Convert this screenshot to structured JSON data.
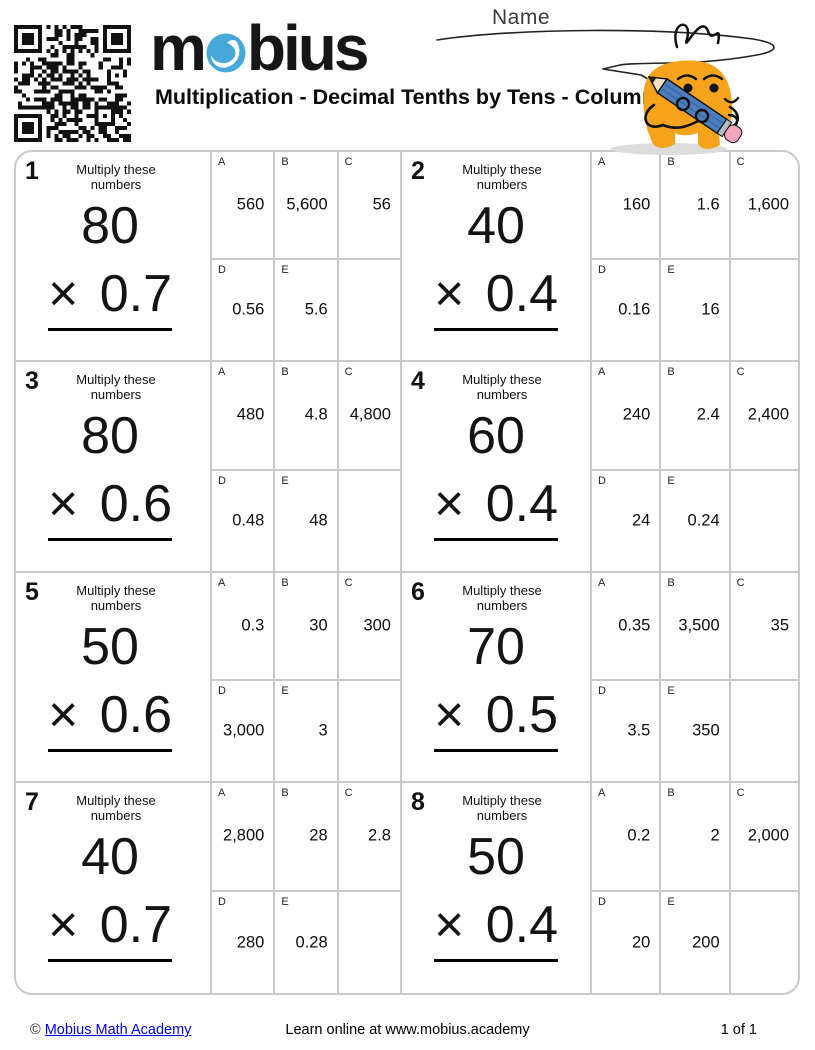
{
  "header": {
    "logo_prefix": "m",
    "logo_suffix": "bius",
    "title": "Multiplication - Decimal Tenths by Tens - Column",
    "name_label": "Name"
  },
  "instruction_label": "Multiply these numbers",
  "problems": [
    {
      "number": "1",
      "multiplicand": "80",
      "operator": "×",
      "multiplier": "0.7",
      "answers": [
        {
          "label": "A",
          "value": "560"
        },
        {
          "label": "B",
          "value": "5,600"
        },
        {
          "label": "C",
          "value": "56"
        },
        {
          "label": "D",
          "value": "0.56"
        },
        {
          "label": "E",
          "value": "5.6"
        }
      ]
    },
    {
      "number": "2",
      "multiplicand": "40",
      "operator": "×",
      "multiplier": "0.4",
      "answers": [
        {
          "label": "A",
          "value": "160"
        },
        {
          "label": "B",
          "value": "1.6"
        },
        {
          "label": "C",
          "value": "1,600"
        },
        {
          "label": "D",
          "value": "0.16"
        },
        {
          "label": "E",
          "value": "16"
        }
      ]
    },
    {
      "number": "3",
      "multiplicand": "80",
      "operator": "×",
      "multiplier": "0.6",
      "answers": [
        {
          "label": "A",
          "value": "480"
        },
        {
          "label": "B",
          "value": "4.8"
        },
        {
          "label": "C",
          "value": "4,800"
        },
        {
          "label": "D",
          "value": "0.48"
        },
        {
          "label": "E",
          "value": "48"
        }
      ]
    },
    {
      "number": "4",
      "multiplicand": "60",
      "operator": "×",
      "multiplier": "0.4",
      "answers": [
        {
          "label": "A",
          "value": "240"
        },
        {
          "label": "B",
          "value": "2.4"
        },
        {
          "label": "C",
          "value": "2,400"
        },
        {
          "label": "D",
          "value": "24"
        },
        {
          "label": "E",
          "value": "0.24"
        }
      ]
    },
    {
      "number": "5",
      "multiplicand": "50",
      "operator": "×",
      "multiplier": "0.6",
      "answers": [
        {
          "label": "A",
          "value": "0.3"
        },
        {
          "label": "B",
          "value": "30"
        },
        {
          "label": "C",
          "value": "300"
        },
        {
          "label": "D",
          "value": "3,000"
        },
        {
          "label": "E",
          "value": "3"
        }
      ]
    },
    {
      "number": "6",
      "multiplicand": "70",
      "operator": "×",
      "multiplier": "0.5",
      "answers": [
        {
          "label": "A",
          "value": "0.35"
        },
        {
          "label": "B",
          "value": "3,500"
        },
        {
          "label": "C",
          "value": "35"
        },
        {
          "label": "D",
          "value": "3.5"
        },
        {
          "label": "E",
          "value": "350"
        }
      ]
    },
    {
      "number": "7",
      "multiplicand": "40",
      "operator": "×",
      "multiplier": "0.7",
      "answers": [
        {
          "label": "A",
          "value": "2,800"
        },
        {
          "label": "B",
          "value": "28"
        },
        {
          "label": "C",
          "value": "2.8"
        },
        {
          "label": "D",
          "value": "280"
        },
        {
          "label": "E",
          "value": "0.28"
        }
      ]
    },
    {
      "number": "8",
      "multiplicand": "50",
      "operator": "×",
      "multiplier": "0.4",
      "answers": [
        {
          "label": "A",
          "value": "0.2"
        },
        {
          "label": "B",
          "value": "2"
        },
        {
          "label": "C",
          "value": "2,000"
        },
        {
          "label": "D",
          "value": "20"
        },
        {
          "label": "E",
          "value": "200"
        }
      ]
    }
  ],
  "footer": {
    "copyright": "©",
    "link_label": "Mobius Math Academy",
    "tagline": "Learn online at www.mobius.academy",
    "page_indicator": "1 of 1"
  },
  "colors": {
    "logo_blue": "#47a8dc",
    "mascot_orange": "#f6a31c",
    "pencil_blue": "#4d7fc0",
    "eraser_pink": "#f4a6bb",
    "grid_border": "#c9c9c9",
    "link_blue": "#0000e8"
  }
}
